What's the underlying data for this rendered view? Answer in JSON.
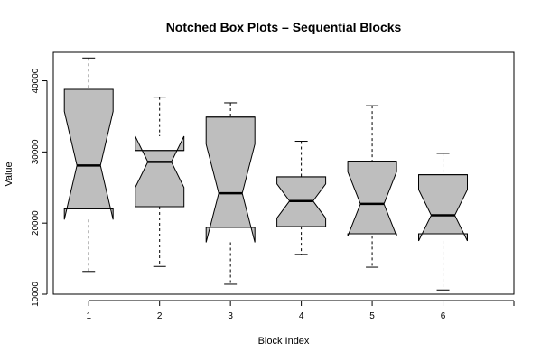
{
  "chart_data": {
    "type": "boxplot",
    "notched": true,
    "title": "Notched Box Plots – Sequential Blocks",
    "xlabel": "Block Index",
    "ylabel": "Value",
    "xlim": [
      0.5,
      7
    ],
    "ylim": [
      10000,
      44000
    ],
    "x_ticks": [
      "1",
      "2",
      "3",
      "4",
      "5",
      "6",
      ""
    ],
    "y_ticks": [
      10000,
      20000,
      30000,
      40000
    ],
    "box_fill": "#bebebe",
    "line_color": "#000000",
    "boxes": [
      {
        "label": "1",
        "whisker_low": 13200,
        "q1": 22000,
        "median": 28100,
        "q3": 38800,
        "whisker_high": 43200,
        "notch_low": 20500,
        "notch_high": 35700
      },
      {
        "label": "2",
        "whisker_low": 13900,
        "q1": 22300,
        "median": 28600,
        "q3": 30200,
        "whisker_high": 37700,
        "notch_low": 25000,
        "notch_high": 32200
      },
      {
        "label": "3",
        "whisker_low": 11400,
        "q1": 19400,
        "median": 24200,
        "q3": 34900,
        "whisker_high": 36900,
        "notch_low": 17300,
        "notch_high": 31100
      },
      {
        "label": "4",
        "whisker_low": 15600,
        "q1": 19500,
        "median": 23100,
        "q3": 26500,
        "whisker_high": 31500,
        "notch_low": 20700,
        "notch_high": 25500
      },
      {
        "label": "5",
        "whisker_low": 13800,
        "q1": 18500,
        "median": 22700,
        "q3": 28700,
        "whisker_high": 36500,
        "notch_low": 18200,
        "notch_high": 27200
      },
      {
        "label": "6",
        "whisker_low": 10600,
        "q1": 18500,
        "median": 21100,
        "q3": 26800,
        "whisker_high": 29800,
        "notch_low": 17500,
        "notch_high": 24700
      }
    ]
  }
}
